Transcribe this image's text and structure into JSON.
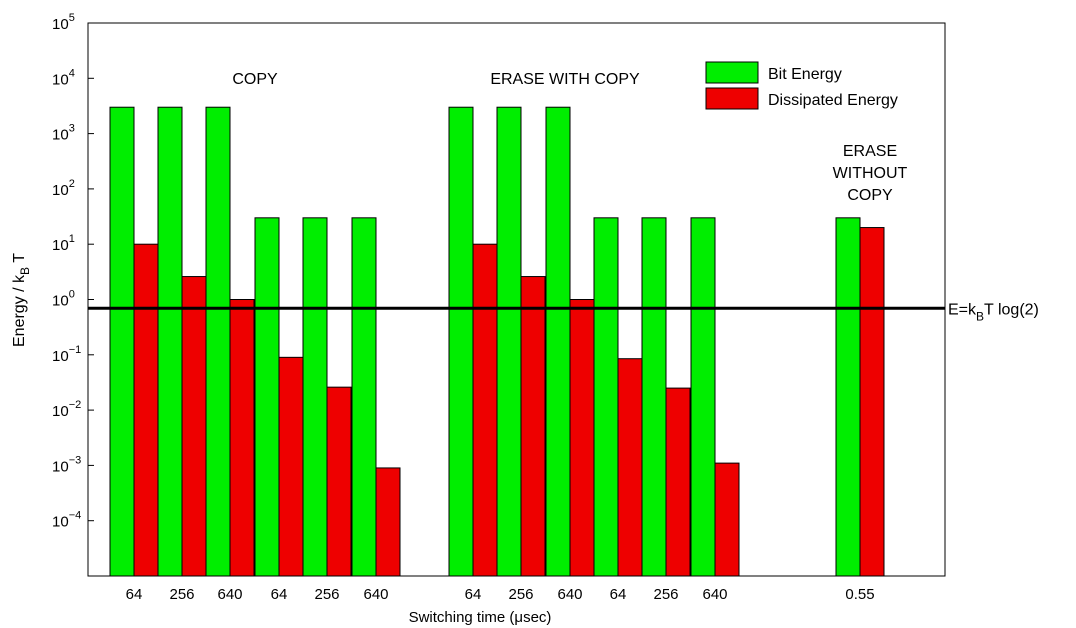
{
  "chart_data": {
    "type": "bar",
    "yscale": "log",
    "ylim": [
      1e-05,
      100000.0
    ],
    "ylabel": "Energy / k_B T",
    "xlabel": "Switching time (μsec)",
    "y_ticks": [
      {
        "value": 0.0001,
        "base": "10",
        "exp": "−4"
      },
      {
        "value": 0.001,
        "base": "10",
        "exp": "−3"
      },
      {
        "value": 0.01,
        "base": "10",
        "exp": "−2"
      },
      {
        "value": 0.1,
        "base": "10",
        "exp": "−1"
      },
      {
        "value": 1,
        "base": "10",
        "exp": "0"
      },
      {
        "value": 10,
        "base": "10",
        "exp": "1"
      },
      {
        "value": 100,
        "base": "10",
        "exp": "2"
      },
      {
        "value": 1000,
        "base": "10",
        "exp": "3"
      },
      {
        "value": 10000,
        "base": "10",
        "exp": "4"
      },
      {
        "value": 100000,
        "base": "10",
        "exp": "5"
      }
    ],
    "categories": [
      "64",
      "256",
      "640",
      "64",
      "256",
      "640",
      "64",
      "256",
      "640",
      "64",
      "256",
      "640",
      "0.55"
    ],
    "series": [
      {
        "name": "Bit Energy",
        "color": "#00ee00",
        "values": [
          3000,
          3000,
          3000,
          30,
          30,
          30,
          3000,
          3000,
          3000,
          30,
          30,
          30,
          30
        ]
      },
      {
        "name": "Dissipated Energy",
        "color": "#ee0000",
        "values": [
          10,
          2.6,
          1.0,
          0.09,
          0.026,
          0.0009,
          10,
          2.6,
          1.0,
          0.085,
          0.025,
          0.0011,
          20
        ]
      }
    ],
    "groups": [
      {
        "label": "COPY",
        "lines": [
          "COPY"
        ]
      },
      {
        "label": "ERASE WITH COPY",
        "lines": [
          "ERASE WITH COPY"
        ]
      },
      {
        "label": "ERASE WITHOUT COPY",
        "lines": [
          "ERASE",
          "WITHOUT",
          "COPY"
        ]
      }
    ],
    "reference_line": {
      "value": 0.6931,
      "label_prefix": "E=k",
      "label_sub": "B",
      "label_suffix": "T log(2)"
    },
    "legend_position": "top-right",
    "grid": false
  }
}
